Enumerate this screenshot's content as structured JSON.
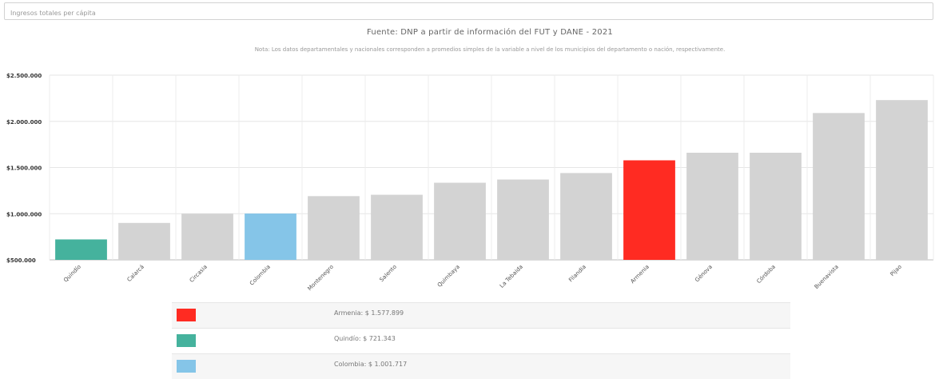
{
  "search": {
    "placeholder": "Ingresos totales per cápita"
  },
  "source_text": "Fuente: DNP a partir de información del FUT y DANE - 2021",
  "note_text": "Nota: Los datos departamentales y nacionales corresponden a promedios simples de la variable a nivel de los municipios del departamento o nación, respectivamente.",
  "chart_data": {
    "type": "bar",
    "title": "",
    "xlabel": "",
    "ylabel": "",
    "ylim": [
      500000,
      2500000
    ],
    "yticks": [
      500000,
      1000000,
      1500000,
      2000000,
      2500000
    ],
    "ytick_labels": [
      "$500.000",
      "$1.000.000",
      "$1.500.000",
      "$2.000.000",
      "$2.500.000"
    ],
    "grid": true,
    "categories": [
      "Quindío",
      "Calarcá",
      "Circasia",
      "Colombia",
      "Montenegro",
      "Salento",
      "Quimbaya",
      "La Tebaida",
      "Filandia",
      "Armenia",
      "Génova",
      "Córdoba",
      "Buenavista",
      "Pijao"
    ],
    "values": [
      721343,
      900000,
      1000000,
      1001717,
      1190000,
      1205000,
      1335000,
      1370000,
      1440000,
      1577899,
      1660000,
      1660000,
      2090000,
      2230000
    ],
    "colors": [
      "#45b29d",
      "#d3d3d3",
      "#d3d3d3",
      "#85c5e8",
      "#d3d3d3",
      "#d3d3d3",
      "#d3d3d3",
      "#d3d3d3",
      "#d3d3d3",
      "#ff2b22",
      "#d3d3d3",
      "#d3d3d3",
      "#d3d3d3",
      "#d3d3d3"
    ]
  },
  "legend": [
    {
      "text": "Armenia: $ 1.577.899",
      "color": "#ff2b22"
    },
    {
      "text": "Quindío: $ 721.343",
      "color": "#45b29d"
    },
    {
      "text": "Colombia: $ 1.001.717",
      "color": "#85c5e8"
    }
  ]
}
